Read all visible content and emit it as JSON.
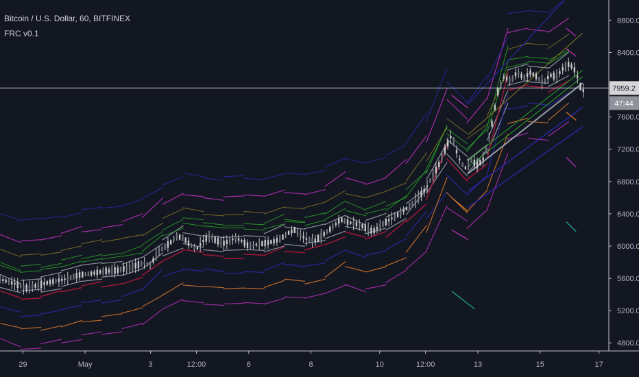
{
  "header": {
    "symbol_line": "Bitcoin / U.S. Dollar, 60, BITFINEX",
    "indicator_line": "FRC v0.1"
  },
  "colors": {
    "background": "#131722",
    "axis_text": "#b2b5be",
    "axis_line": "#c3c5cc",
    "price_line": "#cfd2da",
    "candle": "#c8c8c8",
    "price_badge_bg": "#d6d6d6",
    "price_badge_text": "#131722",
    "countdown_bg": "#8f939c",
    "countdown_text": "#ffffff",
    "channel_gray": "#9a9ea8",
    "channel_green": "#2aa52a",
    "channel_olive": "#8a7a22",
    "channel_blue": "#2a2ab0",
    "channel_magenta": "#c030c0",
    "channel_red": "#b0183a",
    "channel_orange": "#d8782a",
    "channel_teal": "#1bb39a"
  },
  "chart_data": {
    "type": "line",
    "title": "Bitcoin / U.S. Dollar, 60, BITFINEX",
    "indicator": "FRC v0.1",
    "xlabel": "",
    "ylabel": "",
    "ylim": [
      4700,
      9050
    ],
    "xlim": [
      0,
      93
    ],
    "y_ticks": [
      {
        "value": 4800,
        "label": "4800.0"
      },
      {
        "value": 5200,
        "label": "5200.0"
      },
      {
        "value": 5600,
        "label": "5600.0"
      },
      {
        "value": 6000,
        "label": "6000.0"
      },
      {
        "value": 6400,
        "label": "6400.0"
      },
      {
        "value": 6800,
        "label": "6800.0"
      },
      {
        "value": 7200,
        "label": "7200.0"
      },
      {
        "value": 7600,
        "label": "7600.0"
      },
      {
        "value": 8000,
        "label": "8000.0"
      },
      {
        "value": 8400,
        "label": "8400.0"
      },
      {
        "value": 8800,
        "label": "8800.0"
      }
    ],
    "x_ticks": [
      {
        "value": 3.5,
        "label": "29"
      },
      {
        "value": 13,
        "label": "May"
      },
      {
        "value": 23,
        "label": "3"
      },
      {
        "value": 30,
        "label": "12:00"
      },
      {
        "value": 38,
        "label": "6"
      },
      {
        "value": 47.5,
        "label": "8"
      },
      {
        "value": 58,
        "label": "10"
      },
      {
        "value": 65,
        "label": "12:00"
      },
      {
        "value": 73,
        "label": "13"
      },
      {
        "value": 82.5,
        "label": "15"
      },
      {
        "value": 91.5,
        "label": "17"
      }
    ],
    "current_price": {
      "value": 7959.2,
      "label": "7959.2"
    },
    "countdown": "47:44",
    "grid": false,
    "price_series": {
      "name": "",
      "x": [
        0,
        2,
        4,
        6,
        8,
        10,
        12,
        14,
        16,
        18,
        20,
        22,
        23,
        24,
        25,
        26,
        27,
        28,
        29,
        30,
        31,
        32,
        33,
        34,
        35,
        36,
        37,
        38,
        40,
        42,
        43,
        44,
        45,
        46,
        47,
        48,
        49,
        50,
        51,
        52,
        53,
        54,
        55,
        56,
        57,
        58,
        59,
        60,
        61,
        62,
        63,
        64,
        65,
        66,
        67,
        68,
        69,
        70,
        71,
        72,
        73,
        74,
        75,
        76,
        77,
        78,
        79,
        80,
        81,
        82,
        83,
        84,
        85,
        86,
        87,
        88,
        88.5,
        89,
        89.5
      ],
      "y": [
        5590,
        5540,
        5480,
        5520,
        5560,
        5590,
        5640,
        5660,
        5690,
        5700,
        5740,
        5790,
        5760,
        5920,
        5980,
        6040,
        6120,
        6100,
        6020,
        5960,
        6060,
        6120,
        6070,
        6030,
        6060,
        6100,
        6060,
        6000,
        6030,
        6060,
        6100,
        6160,
        6200,
        6130,
        6080,
        6060,
        6120,
        6180,
        6250,
        6330,
        6300,
        6280,
        6260,
        6220,
        6180,
        6250,
        6300,
        6350,
        6400,
        6460,
        6520,
        6620,
        6700,
        6860,
        7000,
        7200,
        7380,
        7100,
        6960,
        7060,
        7000,
        7100,
        7450,
        7900,
        8100,
        8040,
        8160,
        8080,
        8150,
        8100,
        8020,
        8120,
        8100,
        8200,
        8260,
        8160,
        8000,
        7920,
        7959.2
      ]
    }
  }
}
